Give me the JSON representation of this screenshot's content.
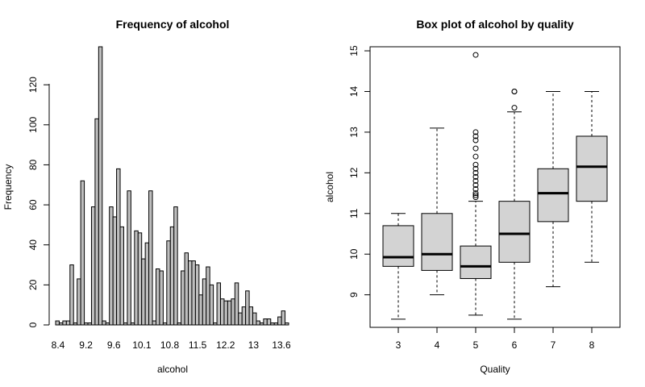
{
  "chart_data": [
    {
      "type": "bar",
      "title": "Frequency of alcohol",
      "xlabel": "alcohol",
      "ylabel": "Frequency",
      "x_ticks": [
        "8.4",
        "9.2",
        "9.6",
        "10.1",
        "10.8",
        "11.5",
        "12.2",
        "13",
        "13.6"
      ],
      "y_ticks": [
        0,
        20,
        40,
        60,
        80,
        100,
        120
      ],
      "ylim": [
        0,
        139
      ],
      "bar_fill": "#bebebe",
      "values": [
        2,
        1,
        2,
        2,
        30,
        1,
        23,
        72,
        1,
        1,
        59,
        103,
        139,
        2,
        1,
        59,
        54,
        78,
        49,
        1,
        67,
        1,
        47,
        46,
        33,
        41,
        67,
        2,
        28,
        27,
        1,
        42,
        49,
        59,
        1,
        27,
        36,
        32,
        32,
        30,
        15,
        23,
        29,
        20,
        1,
        21,
        13,
        12,
        12,
        13,
        21,
        6,
        9,
        17,
        9,
        6,
        2,
        1,
        3,
        3,
        1,
        1,
        4,
        7,
        1
      ]
    },
    {
      "type": "box",
      "title": "Box plot of alcohol by quality",
      "xlabel": "Quality",
      "ylabel": "alcohol",
      "categories": [
        "3",
        "4",
        "5",
        "6",
        "7",
        "8"
      ],
      "y_ticks": [
        9,
        10,
        11,
        12,
        13,
        14,
        15
      ],
      "ylim": [
        8.2,
        15.1
      ],
      "box_fill": "#d3d3d3",
      "boxes": [
        {
          "q": "3",
          "lower_whisker": 8.4,
          "q1": 9.7,
          "median": 9.925,
          "q3": 10.7,
          "upper_whisker": 11.0,
          "outliers": []
        },
        {
          "q": "4",
          "lower_whisker": 9.0,
          "q1": 9.6,
          "median": 10.0,
          "q3": 11.0,
          "upper_whisker": 13.1,
          "outliers": []
        },
        {
          "q": "5",
          "lower_whisker": 8.5,
          "q1": 9.4,
          "median": 9.7,
          "q3": 10.2,
          "upper_whisker": 11.3,
          "outliers": [
            11.4,
            11.45,
            11.5,
            11.6,
            11.7,
            11.8,
            11.9,
            12.0,
            12.1,
            12.2,
            12.4,
            12.6,
            12.8,
            12.9,
            13.0,
            14.9
          ]
        },
        {
          "q": "6",
          "lower_whisker": 8.4,
          "q1": 9.8,
          "median": 10.5,
          "q3": 11.3,
          "upper_whisker": 13.5,
          "outliers": [
            13.6,
            14.0,
            14.0
          ]
        },
        {
          "q": "7",
          "lower_whisker": 9.2,
          "q1": 10.8,
          "median": 11.5,
          "q3": 12.1,
          "upper_whisker": 14.0,
          "outliers": []
        },
        {
          "q": "8",
          "lower_whisker": 9.8,
          "q1": 11.3,
          "median": 12.15,
          "q3": 12.9,
          "upper_whisker": 14.0,
          "outliers": []
        }
      ]
    }
  ]
}
